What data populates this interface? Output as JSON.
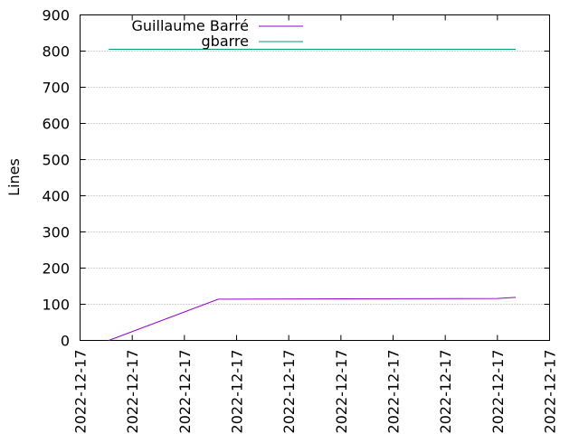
{
  "chart_data": {
    "type": "line",
    "ylabel": "Lines",
    "ylim": [
      0,
      900
    ],
    "yticks": [
      0,
      100,
      200,
      300,
      400,
      500,
      600,
      700,
      800,
      900
    ],
    "xticks": [
      "2022-12-17",
      "2022-12-17",
      "2022-12-17",
      "2022-12-17",
      "2022-12-17",
      "2022-12-17",
      "2022-12-17",
      "2022-12-17",
      "2022-12-17",
      "2022-12-17"
    ],
    "grid": "horizontal dotted",
    "legend_position": "top-left",
    "series": [
      {
        "name": "Guillaume Barré",
        "color": "#9400d3",
        "points": [
          [
            0.55,
            0
          ],
          [
            2.65,
            114
          ],
          [
            8.0,
            116
          ],
          [
            8.35,
            119
          ]
        ]
      },
      {
        "name": "gbarre",
        "color": "#009e73",
        "points": [
          [
            0.55,
            805
          ],
          [
            8.35,
            805
          ]
        ]
      }
    ]
  }
}
